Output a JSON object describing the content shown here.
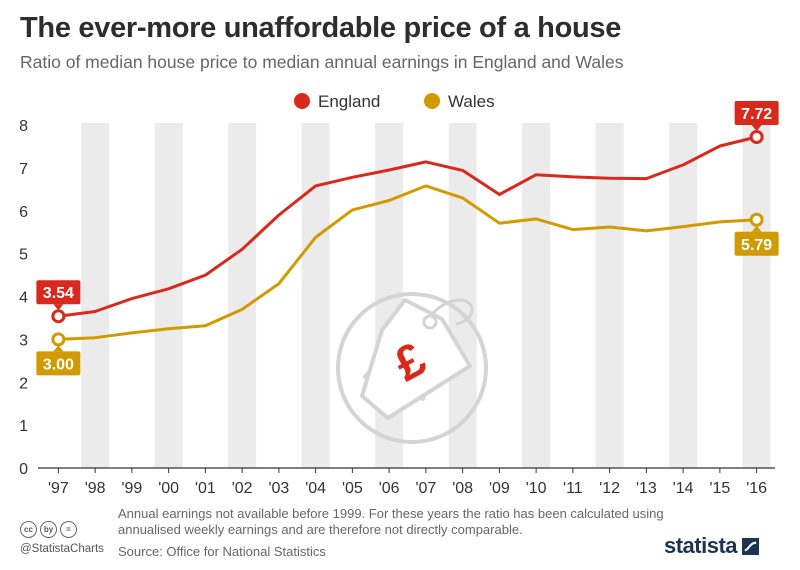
{
  "title": "The ever-more unaffordable price of a house",
  "subtitle": "Ratio of median house price to median annual earnings in England and Wales",
  "footnote": "Annual earnings not available before 1999. For these years the ratio has been calculated using annualised weekly earnings and are therefore not directly comparable.",
  "source": "Source: Office for National Statistics",
  "handle": "@StatistaCharts",
  "brand": "statista",
  "license_icons": [
    "cc",
    "by",
    "="
  ],
  "colors": {
    "england": "#d9291c",
    "wales": "#d09a00",
    "band": "#ebebeb",
    "axis": "#333333",
    "watermark": "#d4d4d4"
  },
  "chart_data": {
    "type": "line",
    "x": [
      "'97",
      "'98",
      "'99",
      "'00",
      "'01",
      "'02",
      "'03",
      "'04",
      "'05",
      "'06",
      "'07",
      "'08",
      "'09",
      "'10",
      "'11",
      "'12",
      "'13",
      "'14",
      "'15",
      "'16"
    ],
    "yticks": [
      0,
      1,
      2,
      3,
      4,
      5,
      6,
      7,
      8
    ],
    "ylim": [
      0,
      8
    ],
    "legend_position": "top-center",
    "series": [
      {
        "name": "England",
        "color": "#d9291c",
        "values": [
          3.54,
          3.65,
          3.95,
          4.18,
          4.5,
          5.1,
          5.9,
          6.58,
          6.78,
          6.95,
          7.14,
          6.94,
          6.38,
          6.84,
          6.79,
          6.76,
          6.75,
          7.07,
          7.51,
          7.72
        ],
        "end_labels": [
          "3.54",
          "7.72"
        ]
      },
      {
        "name": "Wales",
        "color": "#d09a00",
        "values": [
          3.0,
          3.04,
          3.15,
          3.25,
          3.32,
          3.7,
          4.3,
          5.38,
          6.02,
          6.24,
          6.58,
          6.3,
          5.71,
          5.81,
          5.56,
          5.62,
          5.53,
          5.63,
          5.74,
          5.79
        ],
        "end_labels": [
          "3.00",
          "5.79"
        ]
      }
    ]
  }
}
